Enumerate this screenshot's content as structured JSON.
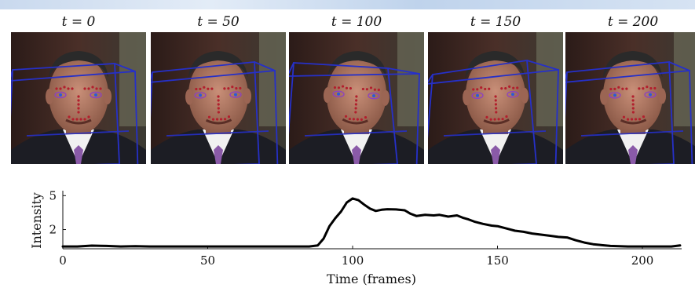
{
  "frames": [
    {
      "label": "t = 0",
      "cube": {
        "tilt": 0,
        "spread": 0
      }
    },
    {
      "label": "t = 50",
      "cube": {
        "tilt": -1,
        "spread": 0
      }
    },
    {
      "label": "t = 100",
      "cube": {
        "tilt": 3,
        "spread": 1
      }
    },
    {
      "label": "t = 150",
      "cube": {
        "tilt": -2,
        "spread": 1
      }
    },
    {
      "label": "t = 200",
      "cube": {
        "tilt": -1,
        "spread": 0
      }
    }
  ],
  "chart_data": {
    "type": "line",
    "title": "",
    "xlabel": "Time (frames)",
    "ylabel": "Intensity",
    "xlim": [
      0,
      213
    ],
    "ylim": [
      0.3,
      5.3
    ],
    "xticks": [
      0,
      50,
      100,
      150,
      200
    ],
    "yticks": [
      2,
      5
    ],
    "grid": false,
    "series": [
      {
        "name": "",
        "x": [
          0,
          5,
          10,
          15,
          20,
          25,
          30,
          40,
          50,
          60,
          70,
          80,
          85,
          88,
          90,
          92,
          94,
          96,
          98,
          100,
          102,
          104,
          106,
          108,
          110,
          112,
          115,
          118,
          120,
          122,
          125,
          128,
          130,
          133,
          136,
          138,
          140,
          142,
          145,
          148,
          150,
          153,
          156,
          159,
          162,
          165,
          168,
          171,
          174,
          177,
          180,
          183,
          186,
          189,
          192,
          195,
          200,
          205,
          210,
          213
        ],
        "y": [
          0.5,
          0.5,
          0.58,
          0.55,
          0.5,
          0.52,
          0.5,
          0.5,
          0.5,
          0.5,
          0.5,
          0.5,
          0.5,
          0.6,
          1.2,
          2.3,
          3.0,
          3.6,
          4.4,
          4.75,
          4.6,
          4.2,
          3.85,
          3.65,
          3.75,
          3.8,
          3.78,
          3.7,
          3.4,
          3.2,
          3.3,
          3.25,
          3.3,
          3.15,
          3.25,
          3.05,
          2.9,
          2.7,
          2.5,
          2.35,
          2.3,
          2.1,
          1.9,
          1.8,
          1.65,
          1.55,
          1.45,
          1.35,
          1.3,
          1.05,
          0.85,
          0.7,
          0.62,
          0.55,
          0.52,
          0.5,
          0.5,
          0.5,
          0.5,
          0.6
        ]
      }
    ]
  }
}
